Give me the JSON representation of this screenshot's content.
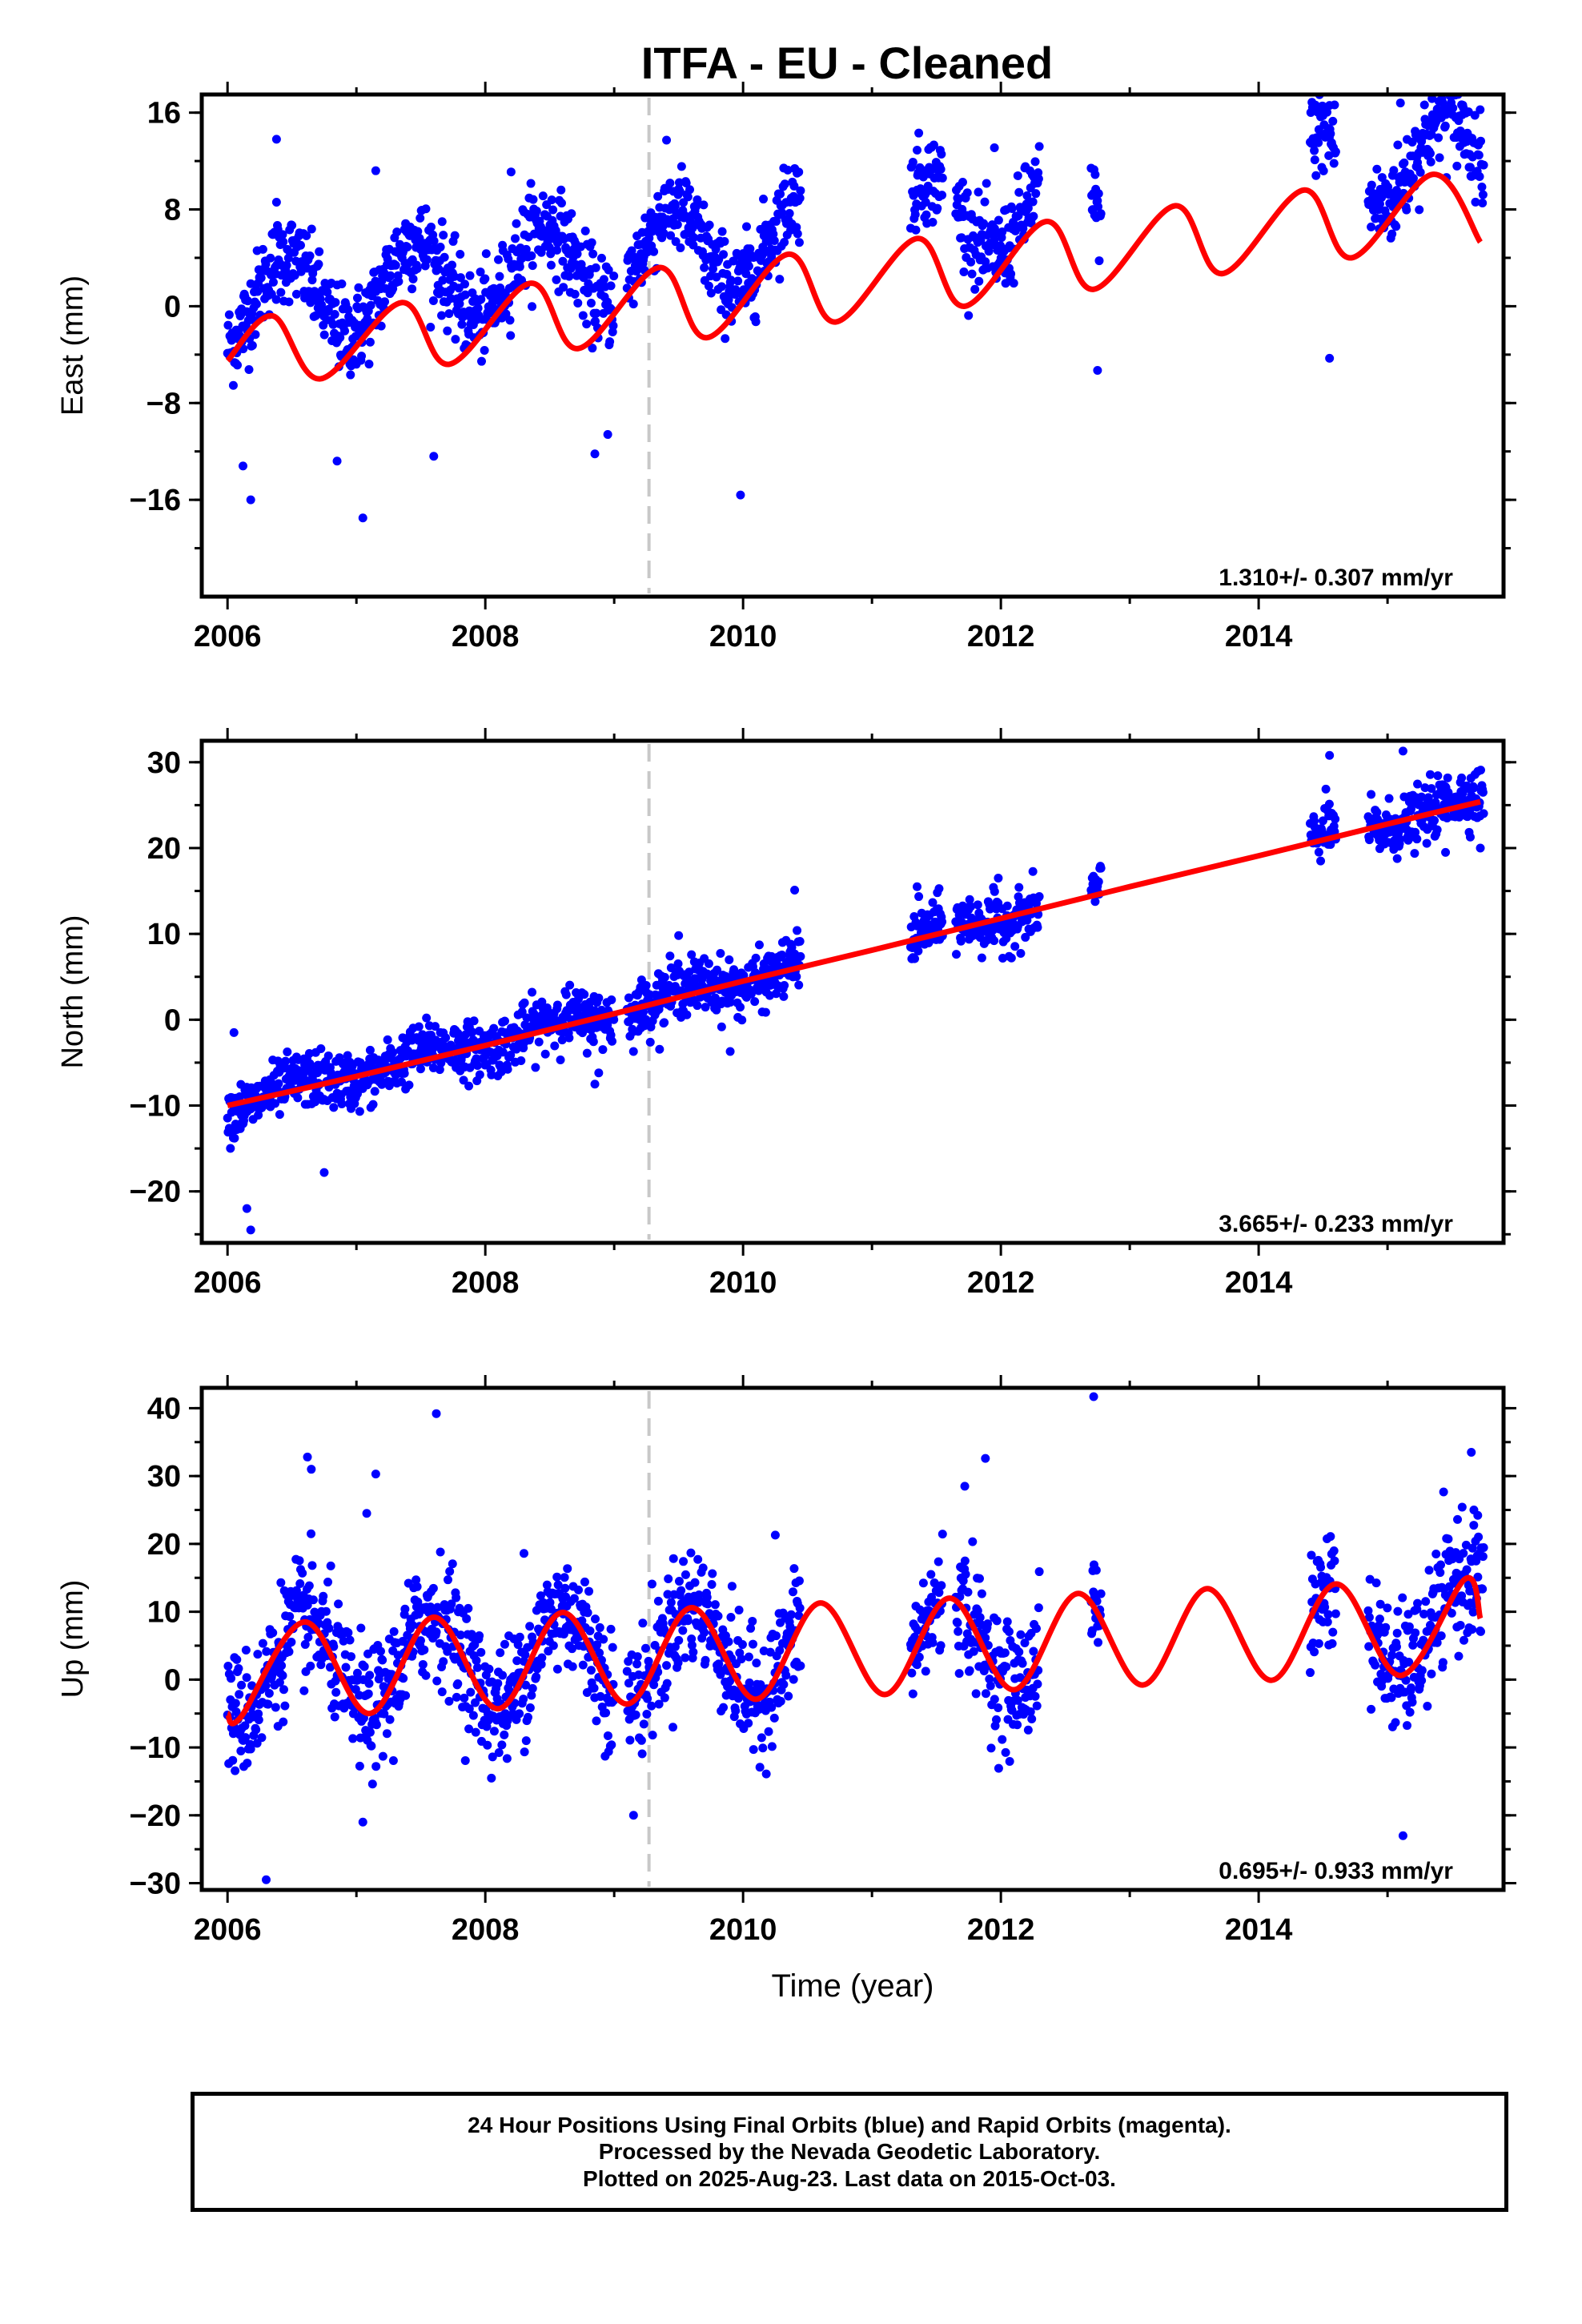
{
  "title": "ITFA  - EU - Cleaned",
  "colors": {
    "points": "#0000ff",
    "fit": "#ff0000",
    "event_line": "#c8c8c8",
    "frame": "#000000"
  },
  "footer": {
    "line1": "24 Hour Positions Using Final Orbits (blue) and Rapid Orbits (magenta).",
    "line2": "Processed by the Nevada Geodetic Laboratory.",
    "line3": "Plotted on 2025-Aug-23. Last data on 2015-Oct-03."
  },
  "chart_data": [
    {
      "type": "scatter",
      "panel": "east",
      "ylabel": "East (mm)",
      "xlabel": "",
      "xlim": [
        2005.8,
        2015.9
      ],
      "ylim": [
        -24,
        17.5
      ],
      "xticks": [
        2006,
        2008,
        2010,
        2012,
        2014
      ],
      "yticks": [
        16,
        8,
        0,
        -8,
        -16
      ],
      "ytick_labels": [
        "16",
        "8",
        "0",
        "−8",
        "−16"
      ],
      "rate_label": "1.310+/- 0.307 mm/yr",
      "event_line_x": 2009.27,
      "data_spans": [
        [
          2006.0,
          2009.0
        ],
        [
          2009.1,
          2010.45
        ],
        [
          2011.3,
          2011.55
        ],
        [
          2011.65,
          2012.3
        ],
        [
          2012.7,
          2012.78
        ],
        [
          2014.4,
          2014.6
        ],
        [
          2014.85,
          2015.75
        ]
      ],
      "fit": {
        "a": 0.0,
        "b": 1.31,
        "amp": 3.5,
        "peak": 0.45
      },
      "series": [
        {
          "type": "line",
          "x": [
            2006.0,
            2006.35,
            2006.72,
            2007.35,
            2007.72,
            2008.35,
            2008.72,
            2009.35,
            2009.72,
            2010.35,
            2010.72,
            2011.35,
            2011.72,
            2012.35,
            2012.72,
            2013.35,
            2013.72,
            2014.35,
            2014.72,
            2015.35,
            2015.72
          ],
          "y": [
            -4.5,
            -0.8,
            -6.0,
            0.3,
            -4.8,
            1.9,
            -3.5,
            3.2,
            -2.6,
            4.3,
            -1.3,
            5.6,
            0.0,
            7.0,
            1.4,
            8.3,
            2.7,
            9.6,
            4.0,
            10.9,
            5.3
          ]
        }
      ],
      "outliers": {
        "x": [
          2006.12,
          2006.18,
          2006.38,
          2006.38,
          2006.85,
          2007.05,
          2007.15,
          2007.6,
          2008.2,
          2008.85,
          2008.95,
          2009.98,
          2011.35,
          2011.95,
          2012.75,
          2014.55,
          2014.55,
          2015.1
        ],
        "y": [
          -13.2,
          -16,
          13.8,
          8.6,
          -12.8,
          -17.5,
          11.2,
          -12.4,
          11.1,
          -12.2,
          -10.6,
          -15.6,
          12.9,
          13.1,
          -5.3,
          16.6,
          -4.3,
          16.8
        ]
      }
    },
    {
      "type": "scatter",
      "panel": "north",
      "ylabel": "North (mm)",
      "xlabel": "",
      "xlim": [
        2005.8,
        2015.9
      ],
      "ylim": [
        -26,
        32.5
      ],
      "xticks": [
        2006,
        2008,
        2010,
        2012,
        2014
      ],
      "yticks": [
        30,
        20,
        10,
        0,
        -10,
        -20
      ],
      "ytick_labels": [
        "30",
        "20",
        "10",
        "0",
        "−10",
        "−20"
      ],
      "rate_label": "3.665+/- 0.233 mm/yr",
      "event_line_x": 2009.27,
      "data_spans": [
        [
          2006.0,
          2009.0
        ],
        [
          2009.1,
          2010.45
        ],
        [
          2011.3,
          2011.55
        ],
        [
          2011.65,
          2012.3
        ],
        [
          2012.7,
          2012.78
        ],
        [
          2014.4,
          2014.6
        ],
        [
          2014.85,
          2015.75
        ]
      ],
      "fit": {
        "a": -10.0,
        "b": 3.665,
        "amp": 0.9,
        "peak": 0.55
      },
      "series": [
        {
          "type": "line",
          "x": [
            2006.0,
            2007.0,
            2008.0,
            2009.0,
            2010.0,
            2011.0,
            2012.0,
            2013.0,
            2014.0,
            2015.0,
            2015.72
          ],
          "y": [
            -10.0,
            -6.6,
            -3.0,
            0.7,
            4.5,
            8.1,
            11.8,
            15.5,
            19.1,
            22.8,
            25.4
          ]
        }
      ],
      "outliers": {
        "x": [
          2006.05,
          2006.15,
          2006.18,
          2006.75,
          2008.85,
          2008.88,
          2009.5,
          2009.9,
          2010.4,
          2011.35,
          2011.98,
          2014.55,
          2015.12,
          2015.45,
          2015.72
        ],
        "y": [
          -1.5,
          -22,
          -24.5,
          -17.8,
          -7.5,
          -6.2,
          9.8,
          -3.7,
          15.1,
          15.5,
          16.5,
          30.8,
          31.3,
          19.5,
          20.0
        ]
      }
    },
    {
      "type": "scatter",
      "panel": "up",
      "ylabel": "Up (mm)",
      "xlabel": "Time (year)",
      "xlim": [
        2005.8,
        2015.9
      ],
      "ylim": [
        -31,
        43
      ],
      "xticks": [
        2006,
        2008,
        2010,
        2012,
        2014
      ],
      "yticks": [
        40,
        30,
        20,
        10,
        0,
        -10,
        -20,
        -30
      ],
      "ytick_labels": [
        "40",
        "30",
        "20",
        "10",
        "0",
        "−10",
        "−20",
        "−30"
      ],
      "rate_label": "0.695+/- 0.933 mm/yr",
      "event_line_x": 2009.27,
      "data_spans": [
        [
          2006.0,
          2009.0
        ],
        [
          2009.1,
          2010.45
        ],
        [
          2011.3,
          2011.55
        ],
        [
          2011.65,
          2012.3
        ],
        [
          2012.7,
          2012.78
        ],
        [
          2014.4,
          2014.6
        ],
        [
          2014.85,
          2015.75
        ]
      ],
      "fit": {
        "a": 1.5,
        "b": 0.695,
        "amp": 7.0,
        "peak": 0.6
      },
      "series": [
        {
          "type": "line",
          "x": [
            2006.0,
            2006.1,
            2006.6,
            2007.1,
            2007.6,
            2008.1,
            2008.6,
            2009.1,
            2009.6,
            2010.1,
            2010.6,
            2011.1,
            2011.6,
            2012.1,
            2012.6,
            2013.1,
            2013.6,
            2014.1,
            2014.6,
            2015.1,
            2015.6,
            2015.72
          ],
          "y": [
            -5.0,
            -5.6,
            8.5,
            -5.0,
            9.2,
            -4.3,
            9.9,
            -3.6,
            10.6,
            -2.9,
            11.3,
            -2.2,
            12.0,
            -1.5,
            12.7,
            -0.8,
            13.4,
            -0.1,
            14.1,
            0.6,
            14.8,
            9.0
          ]
        }
      ],
      "outliers": {
        "x": [
          2006.3,
          2006.62,
          2006.65,
          2007.08,
          2007.15,
          2007.62,
          2007.05,
          2008.3,
          2009.15,
          2010.25,
          2011.72,
          2011.88,
          2012.72,
          2015.12,
          2015.65,
          2015.67,
          2015.7
        ],
        "y": [
          -29.5,
          32.8,
          31.0,
          24.5,
          30.3,
          39.2,
          -21.0,
          18.6,
          -20.0,
          21.3,
          28.5,
          32.6,
          41.7,
          -23.0,
          33.5,
          25.0,
          24.2
        ]
      }
    }
  ]
}
